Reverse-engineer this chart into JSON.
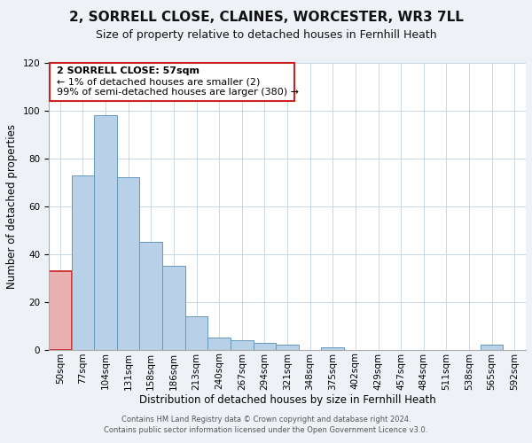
{
  "title": "2, SORRELL CLOSE, CLAINES, WORCESTER, WR3 7LL",
  "subtitle": "Size of property relative to detached houses in Fernhill Heath",
  "xlabel": "Distribution of detached houses by size in Fernhill Heath",
  "ylabel": "Number of detached properties",
  "footer_line1": "Contains HM Land Registry data © Crown copyright and database right 2024.",
  "footer_line2": "Contains public sector information licensed under the Open Government Licence v3.0.",
  "bin_labels": [
    "50sqm",
    "77sqm",
    "104sqm",
    "131sqm",
    "158sqm",
    "186sqm",
    "213sqm",
    "240sqm",
    "267sqm",
    "294sqm",
    "321sqm",
    "348sqm",
    "375sqm",
    "402sqm",
    "429sqm",
    "457sqm",
    "484sqm",
    "511sqm",
    "538sqm",
    "565sqm",
    "592sqm"
  ],
  "bar_heights": [
    33,
    73,
    98,
    72,
    45,
    35,
    14,
    5,
    4,
    3,
    2,
    0,
    1,
    0,
    0,
    0,
    0,
    0,
    0,
    2,
    0
  ],
  "bar_color": "#b8d0e8",
  "bar_edge_color": "#6699bb",
  "highlight_bar_index": 0,
  "highlight_bar_color": "#e8b0b0",
  "highlight_bar_edge_color": "#cc2222",
  "ylim": [
    0,
    120
  ],
  "yticks": [
    0,
    20,
    40,
    60,
    80,
    100,
    120
  ],
  "annotation_box_text_line1": "2 SORRELL CLOSE: 57sqm",
  "annotation_box_text_line2": "← 1% of detached houses are smaller (2)",
  "annotation_box_text_line3": "99% of semi-detached houses are larger (380) →",
  "annotation_box_edge_color": "#cc2222",
  "bg_color": "#eef2f7",
  "plot_bg_color": "#ffffff",
  "grid_color": "#c8d8e8",
  "title_fontsize": 11,
  "subtitle_fontsize": 9,
  "ylabel_fontsize": 8.5,
  "xlabel_fontsize": 8.5,
  "tick_fontsize": 7.5,
  "footer_fontsize": 6,
  "ann_fontsize": 8
}
